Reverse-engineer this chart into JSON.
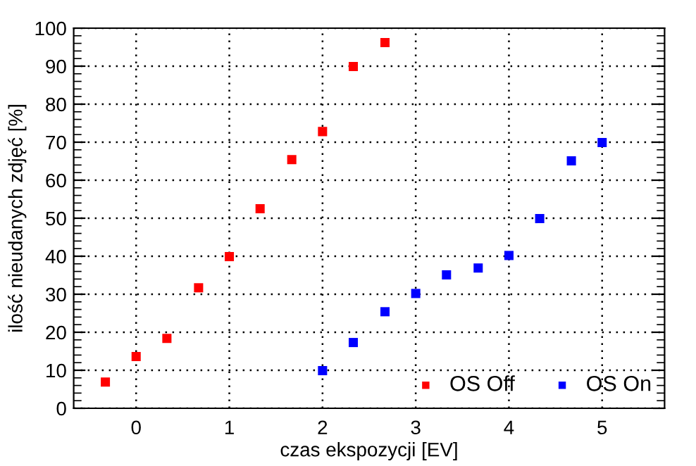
{
  "chart_data": {
    "type": "scatter",
    "xlabel": "czas ekspozycji [EV]",
    "ylabel": "ilość nieudanych zdjęć [%]",
    "x": [
      -0.33,
      0,
      0.33,
      0.67,
      1,
      1.33,
      1.67,
      2,
      2.33,
      2.67
    ],
    "series": [
      {
        "name": "OS Off",
        "color": "#ff0000",
        "values": [
          6.9,
          13.6,
          18.4,
          31.7,
          39.9,
          52.5,
          65.4,
          72.8,
          89.9,
          96.2
        ]
      },
      {
        "name": "OS On",
        "color": "#0000ff",
        "x": [
          2,
          2.33,
          2.67,
          3,
          3.33,
          3.67,
          4,
          4.33,
          4.67,
          5
        ],
        "values": [
          9.9,
          17.3,
          25.4,
          30.2,
          35.1,
          36.9,
          40.2,
          49.9,
          65.1,
          69.9
        ]
      }
    ],
    "xlim": [
      -0.67,
      5.67
    ],
    "ylim": [
      0,
      100
    ],
    "xticks": [
      0,
      1,
      2,
      3,
      4,
      5
    ],
    "yticks": [
      0,
      10,
      20,
      30,
      40,
      50,
      60,
      70,
      80,
      90,
      100
    ],
    "grid": true,
    "legend": "bottom right",
    "marker": "square"
  }
}
